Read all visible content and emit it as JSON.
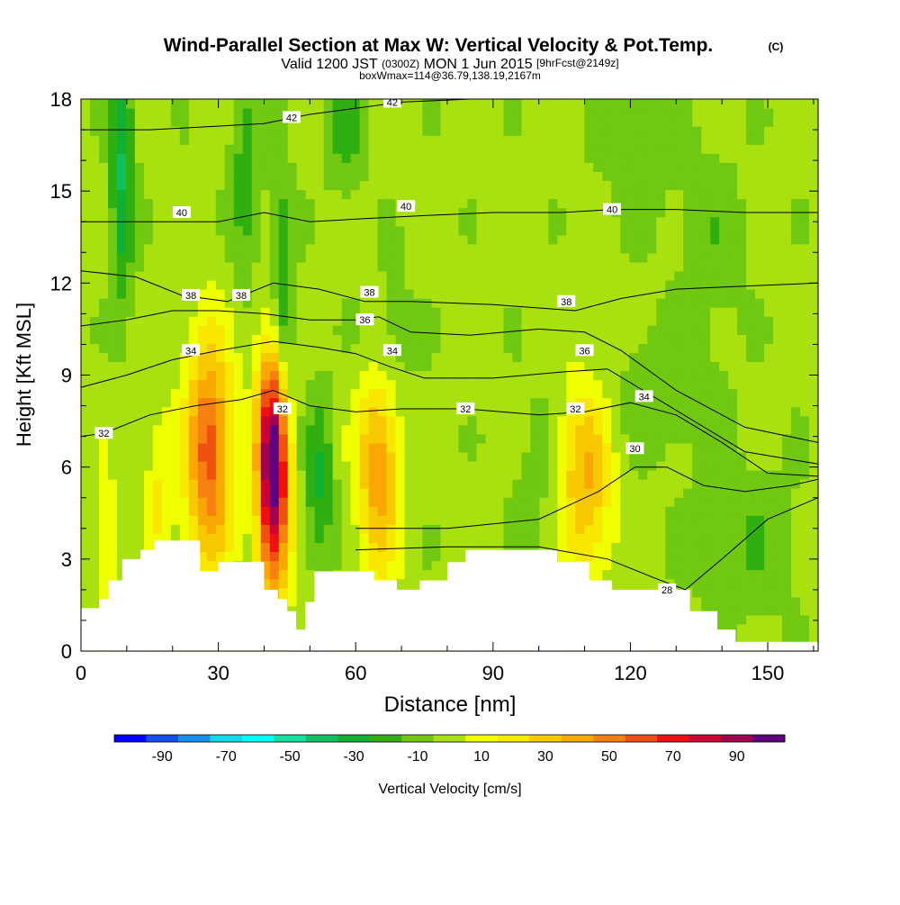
{
  "header": {
    "title": "Wind-Parallel Section at Max W: Vertical Velocity & Pot.Temp.",
    "title_unit": "(C)",
    "valid_prefix": "Valid 1200 JST",
    "valid_utc": "(0300Z)",
    "valid_date": "MON 1 Jun 2015",
    "valid_fcst": "[9hrFcst@2149z]",
    "boxline": "boxWmax=114@36.79,138.19,2167m"
  },
  "chart_data": {
    "type": "heatmap",
    "title": "Wind-Parallel Section at Max W: Vertical Velocity & Pot.Temp.",
    "xlabel": "Distance [nm]",
    "ylabel": "Height [Kft MSL]",
    "xlim": [
      0,
      161
    ],
    "ylim": [
      0,
      18
    ],
    "x_ticks": [
      0,
      30,
      60,
      90,
      120,
      150
    ],
    "y_ticks": [
      0,
      3,
      6,
      9,
      12,
      15,
      18
    ],
    "colorbar": {
      "label": "Vertical Velocity [cm/s]",
      "tick_labels": [
        "-90",
        "-70",
        "-50",
        "-30",
        "-10",
        "10",
        "30",
        "50",
        "70",
        "90"
      ],
      "bin_edges": [
        -100,
        -90,
        -80,
        -70,
        -60,
        -50,
        -40,
        -30,
        -20,
        -10,
        0,
        10,
        20,
        30,
        40,
        50,
        60,
        70,
        80,
        90,
        100
      ],
      "colors": [
        "#0000ff",
        "#1050f0",
        "#1890f0",
        "#10d8f0",
        "#00ffff",
        "#10e0a0",
        "#10c060",
        "#10b030",
        "#30b010",
        "#70c810",
        "#a8e010",
        "#f0ff00",
        "#f8e800",
        "#f8c800",
        "#f8a800",
        "#f88010",
        "#f05010",
        "#f01010",
        "#d00030",
        "#a00050",
        "#600080"
      ]
    },
    "w_max_cm_s": 114,
    "w_cells": [
      {
        "x": 28,
        "z": 6.5,
        "w": 62,
        "sx": 3.6,
        "sz": 2.6
      },
      {
        "x": 42,
        "z": 6.0,
        "w": 114,
        "sx": 2.4,
        "sz": 2.8
      },
      {
        "x": 65,
        "z": 6.0,
        "w": 45,
        "sx": 3.3,
        "sz": 2.4
      },
      {
        "x": 110,
        "z": 5.5,
        "w": 38,
        "sx": 4.2,
        "sz": 2.3
      },
      {
        "x": 17,
        "z": 5.0,
        "w": 18,
        "sx": 2.2,
        "sz": 2.0
      },
      {
        "x": 5,
        "z": 3.5,
        "w": 14,
        "sx": 2.5,
        "sz": 2.0
      },
      {
        "x": 9,
        "z": 15.5,
        "w": -34,
        "sx": 1.8,
        "sz": 2.8
      },
      {
        "x": 44,
        "z": 11,
        "w": -30,
        "sx": 1.8,
        "sz": 3.0
      },
      {
        "x": 52,
        "z": 5.5,
        "w": -24,
        "sx": 2.2,
        "sz": 2.0
      },
      {
        "x": 36,
        "z": 15.5,
        "w": -18,
        "sx": 2.5,
        "sz": 2.5
      },
      {
        "x": 58,
        "z": 17,
        "w": -16,
        "sx": 3.0,
        "sz": 1.5
      },
      {
        "x": 67,
        "z": 10,
        "w": -14,
        "sx": 4.0,
        "sz": 1.5
      },
      {
        "x": 128,
        "z": 8.5,
        "w": -12,
        "sx": 8.0,
        "sz": 1.5
      },
      {
        "x": 145,
        "z": 3.5,
        "w": -12,
        "sx": 8.0,
        "sz": 1.8
      },
      {
        "x": 122,
        "z": 17,
        "w": -12,
        "sx": 6.0,
        "sz": 2.0
      },
      {
        "x": 138,
        "z": 13.5,
        "w": -10,
        "sx": 5.0,
        "sz": 2.0
      },
      {
        "x": 100,
        "z": 5.0,
        "w": -8,
        "sx": 4.0,
        "sz": 2.5
      }
    ],
    "terrain": [
      {
        "x": 0,
        "z": 1.4
      },
      {
        "x": 4,
        "z": 1.7
      },
      {
        "x": 6,
        "z": 2.3
      },
      {
        "x": 9,
        "z": 3.0
      },
      {
        "x": 13,
        "z": 3.3
      },
      {
        "x": 16,
        "z": 3.6
      },
      {
        "x": 23,
        "z": 3.6
      },
      {
        "x": 26,
        "z": 2.6
      },
      {
        "x": 30,
        "z": 2.9
      },
      {
        "x": 35,
        "z": 2.9
      },
      {
        "x": 38,
        "z": 2.9
      },
      {
        "x": 40,
        "z": 2.0
      },
      {
        "x": 43,
        "z": 1.7
      },
      {
        "x": 45,
        "z": 1.3
      },
      {
        "x": 47,
        "z": 0.7
      },
      {
        "x": 49,
        "z": 1.6
      },
      {
        "x": 51,
        "z": 2.6
      },
      {
        "x": 60,
        "z": 2.6
      },
      {
        "x": 64,
        "z": 2.3
      },
      {
        "x": 69,
        "z": 2.0
      },
      {
        "x": 74,
        "z": 2.3
      },
      {
        "x": 80,
        "z": 2.9
      },
      {
        "x": 84,
        "z": 3.3
      },
      {
        "x": 100,
        "z": 3.3
      },
      {
        "x": 104,
        "z": 2.9
      },
      {
        "x": 111,
        "z": 2.3
      },
      {
        "x": 116,
        "z": 2.0
      },
      {
        "x": 126,
        "z": 2.0
      },
      {
        "x": 133,
        "z": 1.3
      },
      {
        "x": 139,
        "z": 0.7
      },
      {
        "x": 143,
        "z": 0.3
      },
      {
        "x": 161,
        "z": 0.3
      }
    ],
    "theta_contours": [
      {
        "value": 28,
        "label": "28",
        "x": [
          60,
          80,
          100,
          115,
          125,
          132,
          140,
          150,
          161
        ],
        "z": [
          3.3,
          3.4,
          3.4,
          3.0,
          2.4,
          2.0,
          3.0,
          4.3,
          5.0
        ]
      },
      {
        "value": 30,
        "label": "30",
        "x": [
          60,
          80,
          100,
          113,
          121,
          128,
          136,
          145,
          155,
          161
        ],
        "z": [
          4.0,
          4.0,
          4.3,
          5.2,
          6.0,
          6.0,
          5.4,
          5.2,
          5.4,
          5.6
        ]
      },
      {
        "value": 32,
        "label": "32",
        "x": [
          0,
          5,
          15,
          25,
          35,
          42,
          50,
          60,
          70,
          84,
          100,
          110,
          120,
          130,
          140,
          150,
          161
        ],
        "z": [
          7.0,
          7.1,
          7.7,
          8.0,
          8.2,
          8.5,
          8.0,
          7.8,
          7.9,
          7.9,
          7.7,
          7.8,
          8.1,
          7.7,
          6.8,
          5.8,
          5.7
        ]
      },
      {
        "value": 34,
        "label": "34",
        "x": [
          0,
          10,
          20,
          30,
          42,
          52,
          60,
          67,
          75,
          90,
          105,
          115,
          125,
          135,
          145,
          161
        ],
        "z": [
          8.6,
          9.0,
          9.5,
          9.8,
          10.1,
          9.9,
          9.7,
          9.3,
          8.9,
          8.9,
          9.1,
          9.2,
          8.3,
          7.4,
          6.5,
          6.1
        ]
      },
      {
        "value": 36,
        "label": "36",
        "x": [
          0,
          10,
          20,
          30,
          40,
          50,
          60,
          65,
          72,
          85,
          100,
          110,
          118,
          130,
          145,
          161
        ],
        "z": [
          10.6,
          10.8,
          11.1,
          11.1,
          11.0,
          10.8,
          10.8,
          10.9,
          10.4,
          10.3,
          10.5,
          10.4,
          9.8,
          8.5,
          7.3,
          6.8
        ]
      },
      {
        "value": 38,
        "label": "38",
        "x": [
          0,
          12,
          22,
          32,
          42,
          52,
          62,
          72,
          90,
          108,
          118,
          130,
          145,
          161
        ],
        "z": [
          12.4,
          12.2,
          11.6,
          11.4,
          12.0,
          11.8,
          11.4,
          11.4,
          11.3,
          11.1,
          11.5,
          11.8,
          11.9,
          12.0
        ]
      },
      {
        "value": 40,
        "label": "40",
        "x": [
          0,
          15,
          30,
          40,
          50,
          62,
          75,
          90,
          105,
          116,
          130,
          145,
          161
        ],
        "z": [
          14.0,
          14.0,
          14.0,
          14.3,
          14.0,
          14.1,
          14.2,
          14.3,
          14.3,
          14.4,
          14.4,
          14.3,
          14.3
        ]
      },
      {
        "value": 42,
        "label": "42",
        "x": [
          0,
          15,
          28,
          40,
          50,
          60,
          70,
          85,
          100,
          120,
          140,
          161
        ],
        "z": [
          17.0,
          17.0,
          17.1,
          17.2,
          17.5,
          17.7,
          17.9,
          18.0,
          18.0,
          18.0,
          18.0,
          18.0
        ]
      }
    ],
    "contour_labels": [
      {
        "text": "32",
        "x": 5,
        "z": 7.1
      },
      {
        "text": "34",
        "x": 24,
        "z": 9.8
      },
      {
        "text": "38",
        "x": 24,
        "z": 11.6
      },
      {
        "text": "38",
        "x": 35,
        "z": 11.6
      },
      {
        "text": "40",
        "x": 22,
        "z": 14.3
      },
      {
        "text": "42",
        "x": 46,
        "z": 17.4
      },
      {
        "text": "42",
        "x": 68,
        "z": 17.9
      },
      {
        "text": "32",
        "x": 44,
        "z": 7.9
      },
      {
        "text": "38",
        "x": 63,
        "z": 11.7
      },
      {
        "text": "36",
        "x": 62,
        "z": 10.8
      },
      {
        "text": "34",
        "x": 68,
        "z": 9.8
      },
      {
        "text": "40",
        "x": 71,
        "z": 14.5
      },
      {
        "text": "32",
        "x": 84,
        "z": 7.9
      },
      {
        "text": "38",
        "x": 106,
        "z": 11.4
      },
      {
        "text": "36",
        "x": 110,
        "z": 9.8
      },
      {
        "text": "32",
        "x": 108,
        "z": 7.9
      },
      {
        "text": "40",
        "x": 116,
        "z": 14.4
      },
      {
        "text": "34",
        "x": 123,
        "z": 8.3
      },
      {
        "text": "30",
        "x": 121,
        "z": 6.6
      },
      {
        "text": "28",
        "x": 128,
        "z": 2.0
      }
    ]
  }
}
